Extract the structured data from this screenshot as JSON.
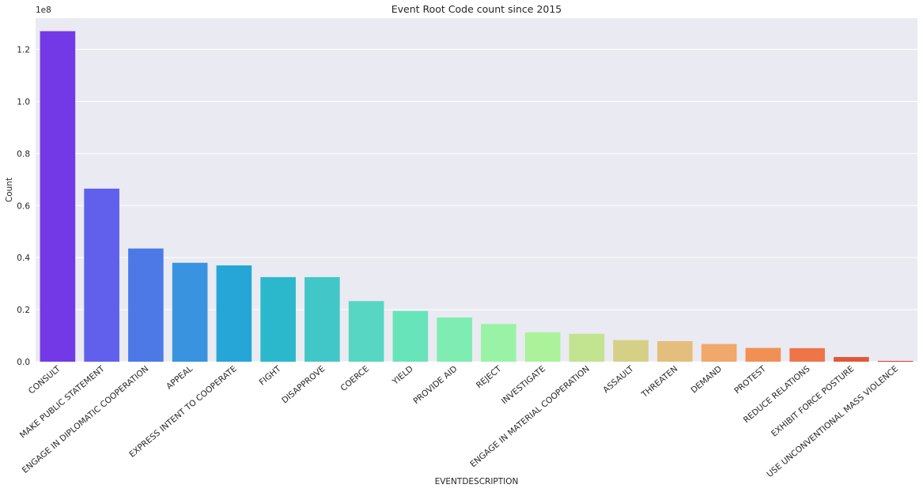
{
  "chart_data": {
    "type": "bar",
    "title": "Event Root Code count since 2015",
    "xlabel": "EVENTDESCRIPTION",
    "ylabel": "Count",
    "y_scale_label": "1e8",
    "ylim": [
      0,
      1.32
    ],
    "yticks": [
      0.0,
      0.2,
      0.4,
      0.6,
      0.8,
      1.0,
      1.2
    ],
    "ytick_labels": [
      "0.0",
      "0.2",
      "0.4",
      "0.6",
      "0.8",
      "1.0",
      "1.2"
    ],
    "grid": true,
    "legend": "none",
    "categories": [
      "CONSULT",
      "MAKE PUBLIC STATEMENT",
      "ENGAGE IN DIPLOMATIC COOPERATION",
      "APPEAL",
      "EXPRESS INTENT TO COOPERATE",
      "FIGHT",
      "DISAPPROVE",
      "COERCE",
      "YIELD",
      "PROVIDE AID",
      "REJECT",
      "INVESTIGATE",
      "ENGAGE IN MATERIAL COOPERATION",
      "ASSAULT",
      "THREATEN",
      "DEMAND",
      "PROTEST",
      "REDUCE RELATIONS",
      "EXHIBIT FORCE POSTURE",
      "USE UNCONVENTIONAL MASS VIOLENCE"
    ],
    "values": [
      1.27,
      0.665,
      0.435,
      0.38,
      0.37,
      0.325,
      0.325,
      0.233,
      0.195,
      0.17,
      0.145,
      0.113,
      0.107,
      0.083,
      0.079,
      0.068,
      0.053,
      0.052,
      0.018,
      0.003
    ],
    "colors": [
      "#7339e7",
      "#6060ec",
      "#4c79e6",
      "#3993de",
      "#25a6d7",
      "#2bb8cc",
      "#42c7c8",
      "#58d6c4",
      "#67e4ba",
      "#7fedb2",
      "#99f3a6",
      "#acf29a",
      "#c2e38f",
      "#d5d086",
      "#e4be7c",
      "#f0a86b",
      "#f19055",
      "#ed7548",
      "#e15838",
      "#d23b25"
    ]
  }
}
